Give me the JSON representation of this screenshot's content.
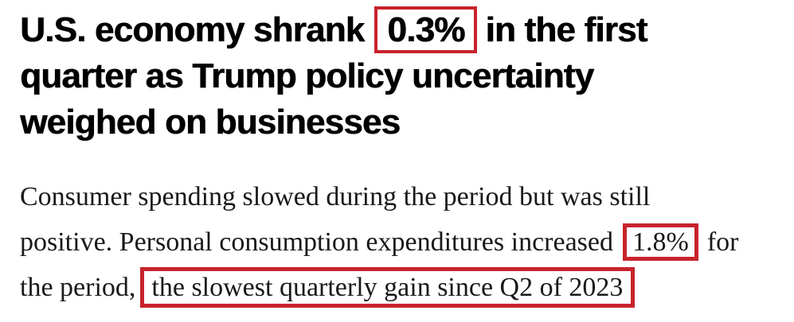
{
  "page": {
    "background": "#ffffff",
    "highlight_color": "#c8232c",
    "headline_color": "#000000",
    "body_color": "#191919"
  },
  "headline": {
    "full_text": "U.S. economy shrank 0.3% in the first quarter as Trump policy uncertainty weighed on businesses",
    "line1_pre": "U.S. economy shrank",
    "line1_highlight": "0.3%",
    "line1_post": "in the first",
    "line2": "quarter as Trump policy uncertainty",
    "line3": "weighed on businesses"
  },
  "paragraph": {
    "full_text": "Consumer spending slowed during the period but was still positive. Personal consumption expenditures increased 1.8% for the period, the slowest quarterly gain since Q2 of 2023",
    "line1": "Consumer spending slowed during the period but was still",
    "line2_pre": "positive. Personal consumption expenditures increased",
    "line2_highlight": "1.8%",
    "line2_post": "for",
    "line3_pre": "the period,",
    "line3_highlight": "the slowest quarterly gain since Q2 of 2023"
  }
}
